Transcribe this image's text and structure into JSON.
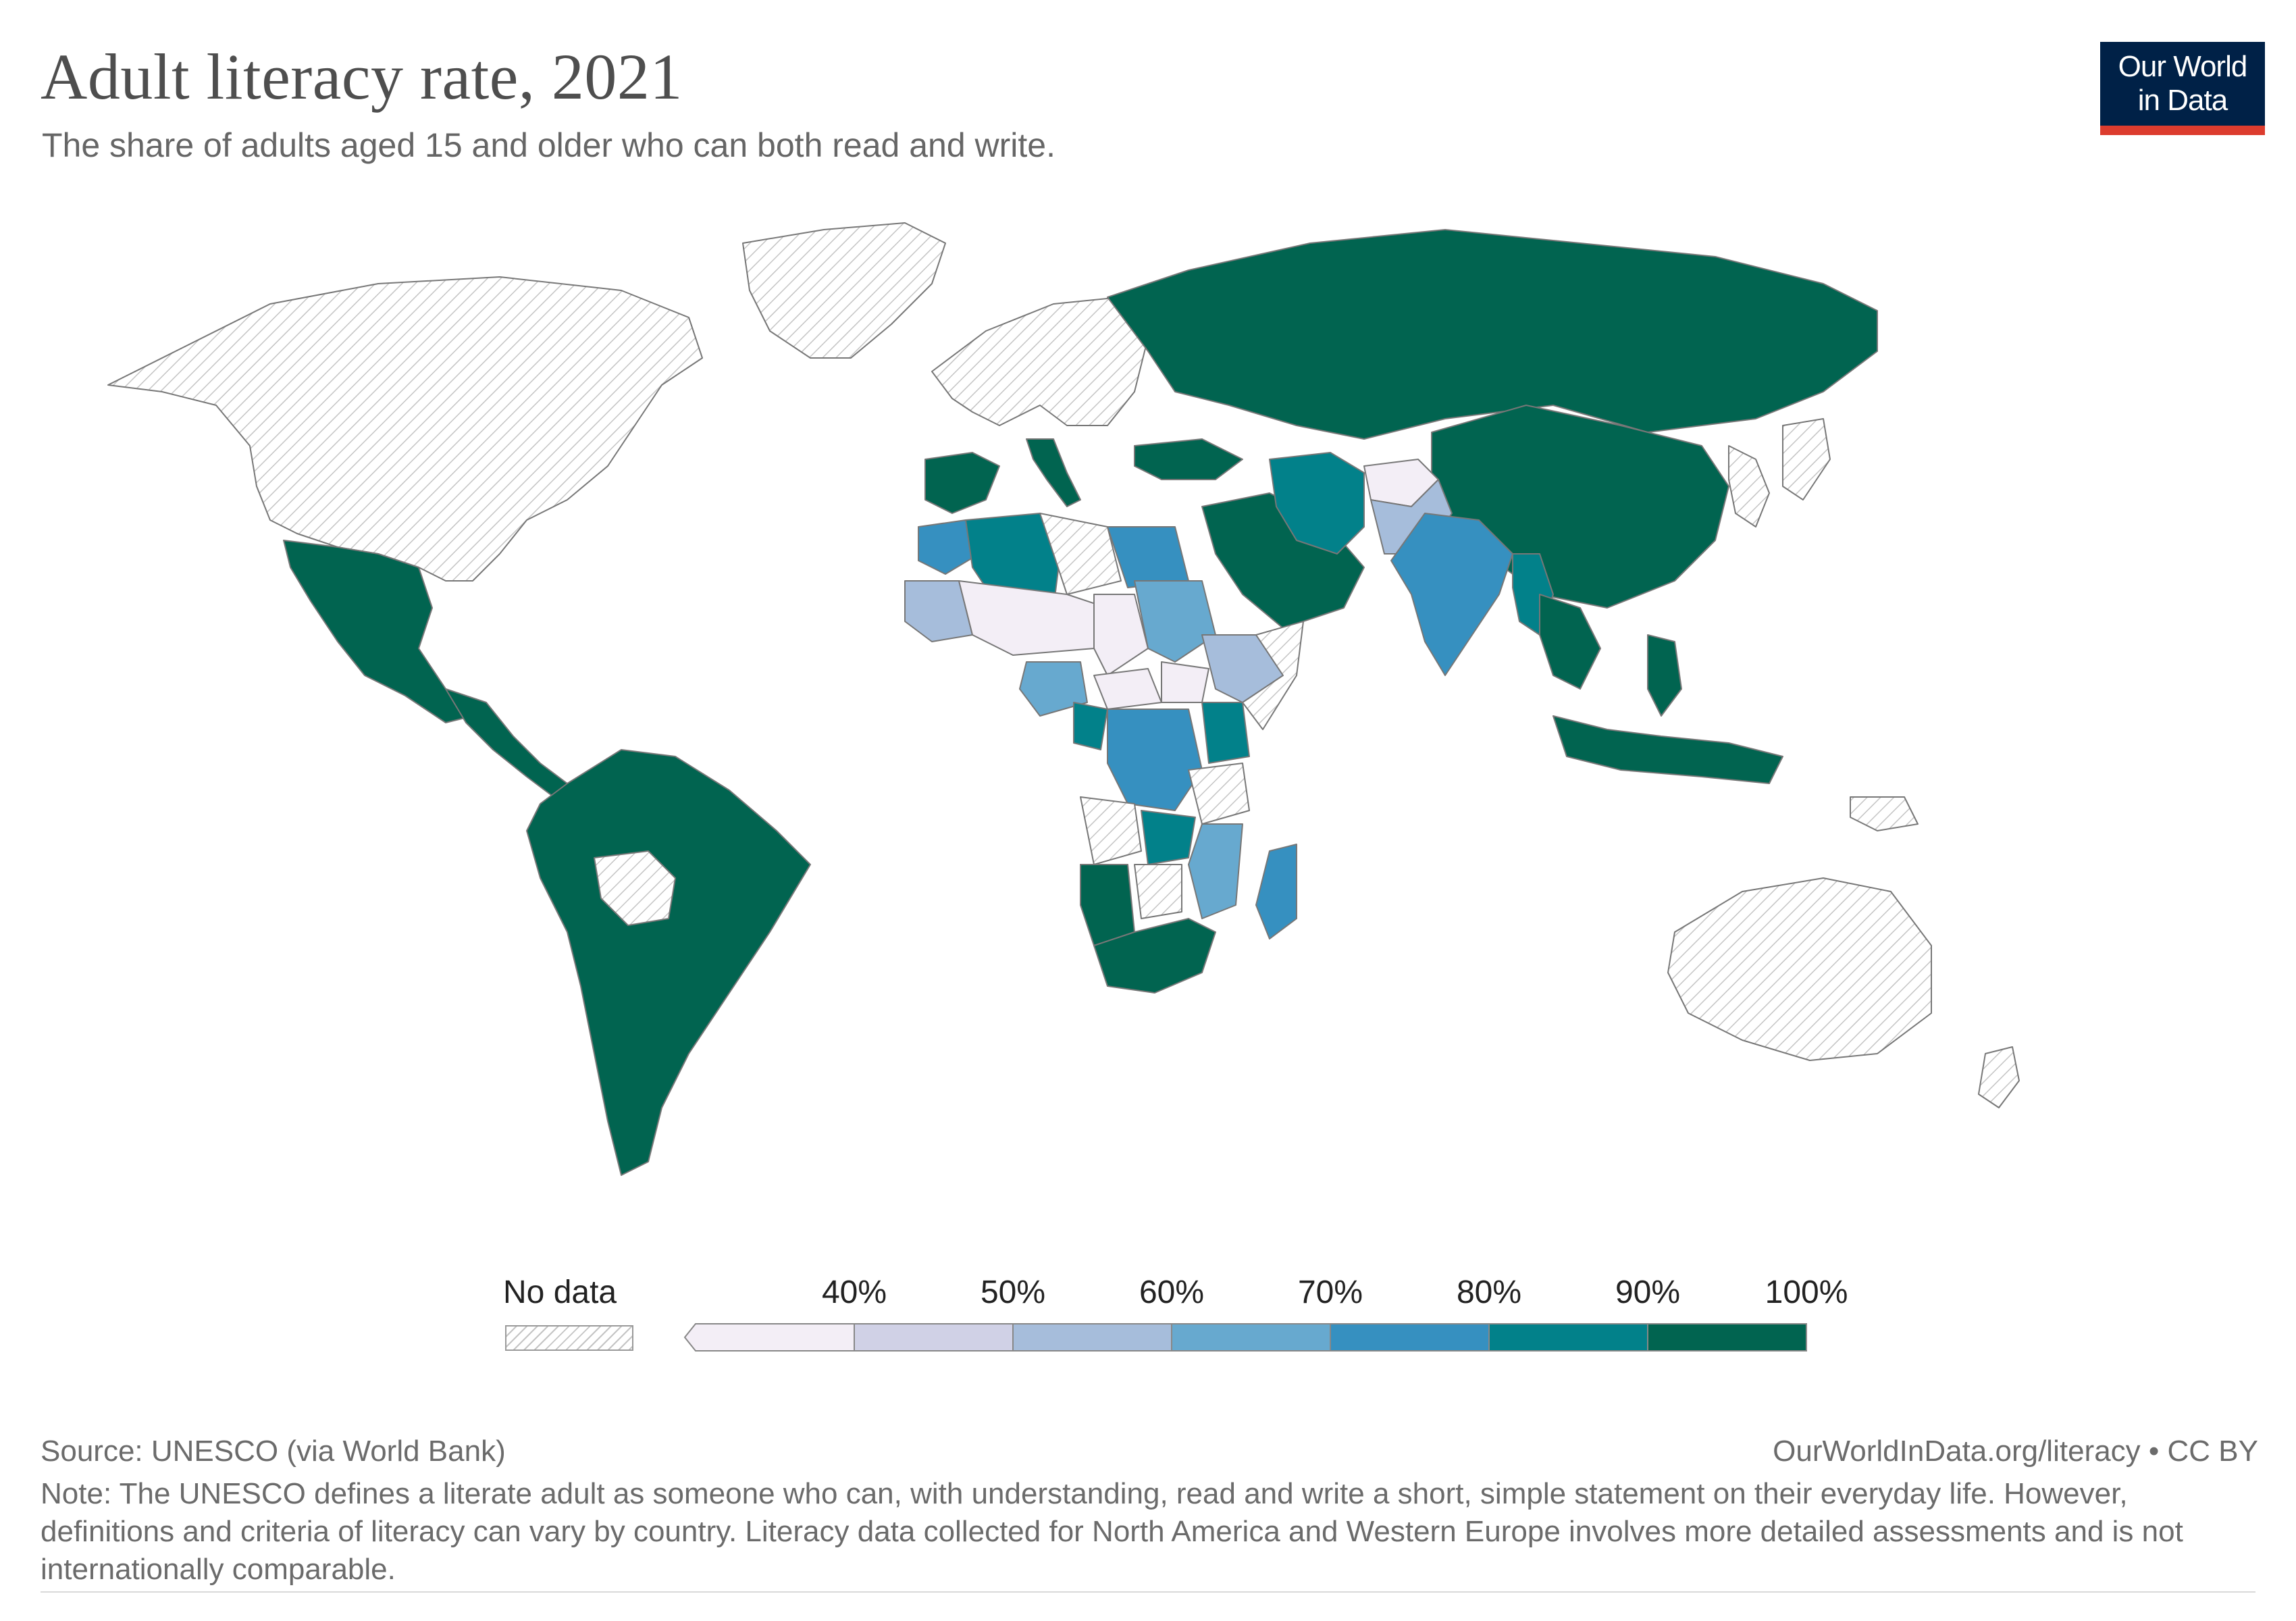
{
  "header": {
    "title": "Adult literacy rate, 2021",
    "subtitle": "The share of adults aged 15 and older who can both read and write."
  },
  "logo": {
    "line1": "Our World",
    "line2": "in Data"
  },
  "legend": {
    "no_data_label": "No data",
    "bins": [
      {
        "from": null,
        "to": 40,
        "label": "40%",
        "color": "#f3eef6"
      },
      {
        "from": 40,
        "to": 50,
        "label": "50%",
        "color": "#d0d1e6"
      },
      {
        "from": 50,
        "to": 60,
        "label": "60%",
        "color": "#a6bddb"
      },
      {
        "from": 60,
        "to": 70,
        "label": "70%",
        "color": "#67a9cf"
      },
      {
        "from": 70,
        "to": 80,
        "label": "80%",
        "color": "#3690c0"
      },
      {
        "from": 80,
        "to": 90,
        "label": "90%",
        "color": "#02818a"
      },
      {
        "from": 90,
        "to": 100,
        "label": "100%",
        "color": "#016450"
      }
    ]
  },
  "footer": {
    "source": "Source: UNESCO (via World Bank)",
    "url": "OurWorldInData.org/literacy • CC BY",
    "note": "Note: The UNESCO defines a literate adult as someone who can, with understanding, read and write a short, simple statement on their everyday life. However, definitions and criteria of literacy can vary by country. Literacy data collected for North America and Western Europe involves more detailed assessments and is not internationally comparable."
  },
  "map": {
    "regions": [
      {
        "name": "North America",
        "bin": "no-data"
      },
      {
        "name": "Greenland",
        "bin": "no-data"
      },
      {
        "name": "Mexico",
        "bin": "90-100"
      },
      {
        "name": "Central America",
        "bin": "90-100"
      },
      {
        "name": "South America",
        "bin": "90-100"
      },
      {
        "name": "Bolivia",
        "bin": "no-data"
      },
      {
        "name": "Western Europe",
        "bin": "no-data"
      },
      {
        "name": "Spain & Portugal",
        "bin": "90-100"
      },
      {
        "name": "Italy",
        "bin": "90-100"
      },
      {
        "name": "Russia & Central Asia",
        "bin": "90-100"
      },
      {
        "name": "China",
        "bin": "90-100"
      },
      {
        "name": "Japan & Korea",
        "bin": "no-data"
      },
      {
        "name": "Turkey",
        "bin": "90-100"
      },
      {
        "name": "Arabian Peninsula",
        "bin": "90-100"
      },
      {
        "name": "Iran",
        "bin": "80-90"
      },
      {
        "name": "Afghanistan",
        "bin": "<40"
      },
      {
        "name": "Pakistan",
        "bin": "50-60"
      },
      {
        "name": "India",
        "bin": "70-80"
      },
      {
        "name": "Myanmar",
        "bin": "80-90"
      },
      {
        "name": "Thailand & Vietnam",
        "bin": "90-100"
      },
      {
        "name": "Philippines",
        "bin": "90-100"
      },
      {
        "name": "Indonesia",
        "bin": "90-100"
      },
      {
        "name": "Morocco",
        "bin": "70-80"
      },
      {
        "name": "Algeria",
        "bin": "80-90"
      },
      {
        "name": "Libya",
        "bin": "no-data"
      },
      {
        "name": "Egypt",
        "bin": "70-80"
      },
      {
        "name": "Mauritania",
        "bin": "50-60"
      },
      {
        "name": "Mali & Niger",
        "bin": "<40"
      },
      {
        "name": "Chad",
        "bin": "<40"
      },
      {
        "name": "Sudan",
        "bin": "60-70"
      },
      {
        "name": "Ethiopia",
        "bin": "50-60"
      },
      {
        "name": "Somalia",
        "bin": "no-data"
      },
      {
        "name": "Nigeria",
        "bin": "60-70"
      },
      {
        "name": "Central African Republic",
        "bin": "<40"
      },
      {
        "name": "South Sudan",
        "bin": "<40"
      },
      {
        "name": "Cameroon",
        "bin": "80-90"
      },
      {
        "name": "DR Congo",
        "bin": "70-80"
      },
      {
        "name": "Kenya",
        "bin": "80-90"
      },
      {
        "name": "Tanzania",
        "bin": "no-data"
      },
      {
        "name": "Angola",
        "bin": "no-data"
      },
      {
        "name": "Zambia",
        "bin": "80-90"
      },
      {
        "name": "Mozambique",
        "bin": "60-70"
      },
      {
        "name": "Madagascar",
        "bin": "70-80"
      },
      {
        "name": "Namibia",
        "bin": "90-100"
      },
      {
        "name": "Botswana",
        "bin": "no-data"
      },
      {
        "name": "South Africa",
        "bin": "90-100"
      },
      {
        "name": "Australia",
        "bin": "no-data"
      },
      {
        "name": "New Zealand",
        "bin": "no-data"
      },
      {
        "name": "Papua New Guinea",
        "bin": "no-data"
      }
    ]
  }
}
